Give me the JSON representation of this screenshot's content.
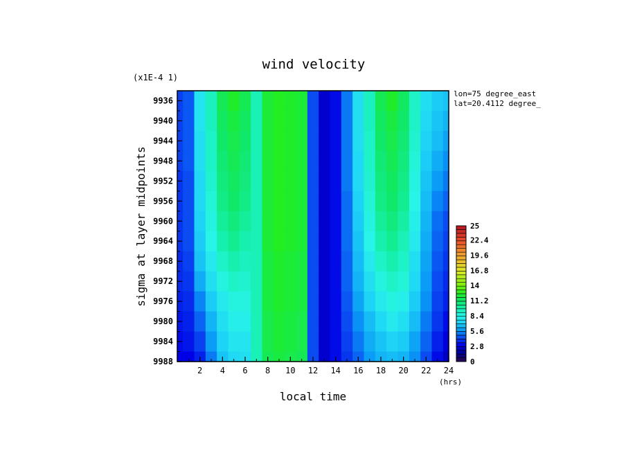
{
  "chart_data": {
    "type": "heatmap",
    "title": "wind velocity",
    "xlabel": "local time",
    "x_unit": "(hrs)",
    "ylabel": "sigma at layer midpoints",
    "y_scale_note": "(x1E-4 1)",
    "annotations": [
      "lon=75 degree_east",
      "lat=20.4112 degree_"
    ],
    "x_range": [
      0,
      24
    ],
    "y_range": [
      9934,
      9988
    ],
    "x_ticks": [
      "2",
      "4",
      "6",
      "8",
      "10",
      "12",
      "14",
      "16",
      "18",
      "20",
      "22",
      "24"
    ],
    "y_ticks": [
      "9936",
      "9940",
      "9944",
      "9948",
      "9952",
      "9956",
      "9960",
      "9964",
      "9968",
      "9972",
      "9976",
      "9980",
      "9984",
      "9988"
    ],
    "colorbar_ticks": [
      "25",
      "22.4",
      "19.6",
      "16.8",
      "14",
      "11.2",
      "8.4",
      "5.6",
      "2.8",
      "0"
    ],
    "colorbar_range": [
      0,
      25
    ],
    "x": [
      0,
      1,
      2,
      3,
      4,
      5,
      6,
      7,
      8,
      9,
      10,
      11,
      12,
      13,
      14,
      15,
      16,
      17,
      18,
      19,
      20,
      21,
      22,
      23,
      24
    ],
    "y": [
      9936,
      9940,
      9944,
      9948,
      9952,
      9956,
      9960,
      9964,
      9968,
      9972,
      9976,
      9980,
      9984,
      9988
    ],
    "values": [
      [
        4.2,
        4.6,
        7.8,
        9.4,
        11.6,
        12.4,
        11.6,
        9.6,
        12.2,
        12.6,
        12.4,
        12.2,
        4.4,
        2.6,
        3.2,
        5.2,
        7.6,
        9.4,
        11.6,
        12.4,
        11.4,
        9.2,
        7.6,
        7.0,
        6.8
      ],
      [
        4.2,
        4.6,
        7.8,
        9.4,
        11.4,
        12.0,
        11.4,
        9.6,
        12.2,
        12.6,
        12.4,
        12.2,
        4.4,
        2.6,
        3.2,
        5.2,
        7.6,
        9.4,
        11.4,
        12.0,
        11.2,
        9.2,
        7.4,
        6.8,
        6.4
      ],
      [
        4.2,
        4.6,
        7.6,
        9.2,
        11.2,
        11.8,
        11.2,
        9.6,
        12.2,
        12.6,
        12.4,
        12.2,
        4.4,
        2.6,
        3.2,
        5.2,
        7.6,
        9.2,
        11.2,
        11.8,
        11.0,
        9.0,
        7.2,
        6.6,
        6.0
      ],
      [
        4.2,
        4.6,
        7.6,
        9.2,
        11.0,
        11.6,
        11.0,
        9.6,
        12.2,
        12.6,
        12.4,
        12.2,
        4.4,
        2.6,
        3.2,
        5.2,
        7.4,
        9.2,
        11.0,
        11.6,
        10.8,
        8.8,
        7.0,
        6.2,
        5.6
      ],
      [
        4.0,
        4.4,
        7.4,
        9.0,
        10.8,
        11.4,
        10.8,
        9.6,
        12.2,
        12.6,
        12.4,
        12.2,
        4.4,
        2.6,
        3.2,
        5.2,
        7.4,
        9.0,
        10.8,
        11.4,
        10.6,
        8.6,
        6.8,
        5.8,
        5.2
      ],
      [
        4.0,
        4.4,
        7.4,
        8.8,
        10.6,
        11.2,
        10.6,
        9.6,
        12.2,
        12.6,
        12.4,
        12.2,
        4.4,
        2.6,
        3.2,
        5.0,
        7.2,
        8.8,
        10.6,
        11.2,
        10.4,
        8.4,
        6.6,
        5.4,
        4.8
      ],
      [
        4.0,
        4.4,
        7.2,
        8.6,
        10.2,
        10.8,
        10.2,
        9.6,
        12.2,
        12.6,
        12.4,
        12.2,
        4.4,
        2.6,
        3.2,
        5.0,
        7.0,
        8.6,
        10.2,
        10.8,
        10.0,
        8.2,
        6.4,
        5.0,
        4.4
      ],
      [
        4.0,
        4.4,
        7.0,
        8.4,
        9.8,
        10.4,
        9.8,
        9.6,
        12.2,
        12.6,
        12.4,
        12.2,
        4.4,
        2.6,
        3.2,
        5.0,
        6.8,
        8.4,
        9.8,
        10.4,
        9.6,
        8.0,
        6.2,
        4.8,
        4.2
      ],
      [
        3.8,
        4.2,
        6.8,
        8.0,
        9.2,
        9.8,
        9.4,
        9.6,
        12.0,
        12.4,
        12.2,
        12.0,
        4.4,
        2.6,
        3.2,
        4.8,
        6.6,
        8.0,
        9.2,
        9.8,
        9.2,
        7.6,
        6.0,
        4.6,
        4.0
      ],
      [
        3.8,
        4.0,
        6.2,
        7.6,
        8.6,
        9.2,
        9.0,
        9.6,
        12.0,
        12.4,
        12.2,
        12.0,
        4.4,
        2.6,
        3.2,
        4.8,
        6.4,
        7.6,
        8.6,
        9.2,
        8.8,
        7.4,
        5.8,
        4.4,
        3.8
      ],
      [
        3.6,
        3.8,
        5.4,
        7.0,
        8.0,
        8.6,
        8.6,
        9.6,
        12.0,
        12.4,
        12.2,
        12.0,
        4.4,
        2.6,
        3.2,
        4.6,
        6.0,
        7.2,
        8.0,
        8.6,
        8.2,
        7.0,
        5.6,
        4.2,
        3.6
      ],
      [
        3.4,
        3.6,
        4.8,
        6.4,
        7.6,
        8.2,
        8.2,
        9.6,
        11.8,
        12.2,
        12.0,
        11.8,
        4.4,
        2.6,
        3.2,
        4.4,
        5.6,
        6.6,
        7.4,
        8.0,
        7.6,
        6.6,
        5.2,
        4.0,
        3.2
      ],
      [
        3.2,
        3.4,
        4.2,
        5.8,
        7.2,
        7.8,
        7.8,
        9.6,
        11.8,
        12.2,
        12.0,
        11.8,
        4.4,
        2.6,
        3.2,
        4.2,
        5.2,
        6.2,
        6.8,
        7.2,
        7.0,
        6.0,
        4.8,
        3.6,
        2.8
      ],
      [
        3.0,
        3.0,
        3.6,
        5.2,
        6.8,
        7.4,
        7.6,
        9.6,
        11.6,
        12.0,
        11.8,
        11.6,
        4.4,
        2.6,
        3.2,
        4.0,
        4.8,
        5.8,
        6.4,
        6.6,
        6.4,
        5.6,
        4.4,
        3.2,
        2.4
      ]
    ]
  }
}
